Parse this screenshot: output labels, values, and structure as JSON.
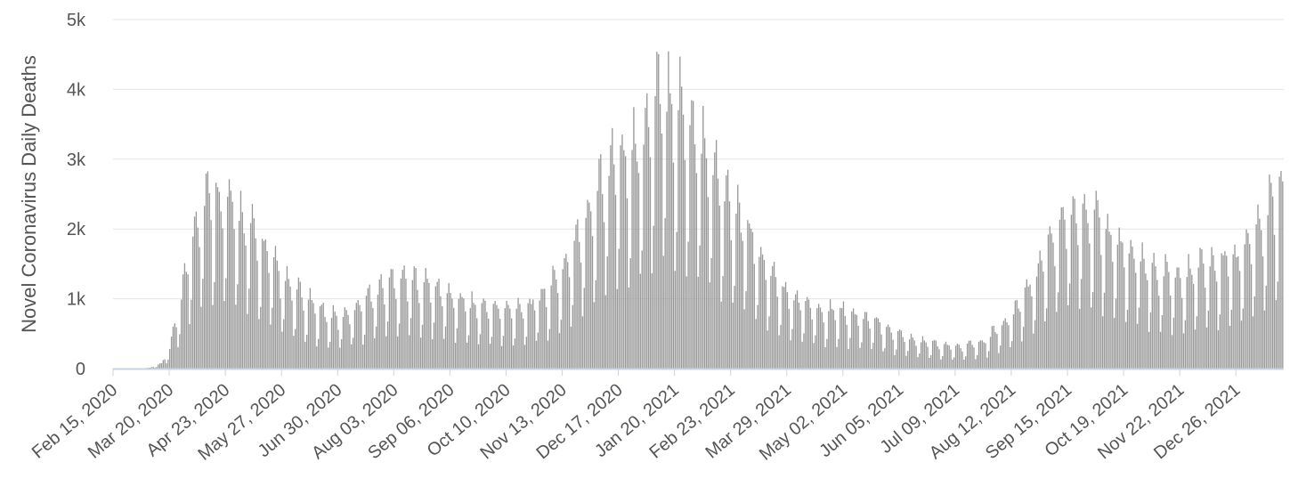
{
  "chart_data": {
    "type": "bar",
    "ylabel": "Novel Coronavirus Daily Deaths",
    "xlabel": "",
    "ylim": [
      0,
      5000
    ],
    "y_ticks": [
      0,
      1000,
      2000,
      3000,
      4000,
      5000
    ],
    "y_tick_labels": [
      "0",
      "1k",
      "2k",
      "3k",
      "4k",
      "5k"
    ],
    "x_start": "2020-02-15",
    "x_end": "2022-01-24",
    "x_ticks": [
      "2020-02-15",
      "2020-03-20",
      "2020-04-23",
      "2020-05-27",
      "2020-06-30",
      "2020-08-03",
      "2020-09-06",
      "2020-10-10",
      "2020-11-13",
      "2020-12-17",
      "2021-01-20",
      "2021-02-23",
      "2021-03-29",
      "2021-05-02",
      "2021-06-05",
      "2021-07-09",
      "2021-08-12",
      "2021-09-15",
      "2021-10-19",
      "2021-11-22",
      "2021-12-26"
    ],
    "x_tick_labels": [
      "Feb 15, 2020",
      "Mar 20, 2020",
      "Apr 23, 2020",
      "May 27, 2020",
      "Jun 30, 2020",
      "Aug 03, 2020",
      "Sep 06, 2020",
      "Oct 10, 2020",
      "Nov 13, 2020",
      "Dec 17, 2020",
      "Jan 20, 2021",
      "Feb 23, 2021",
      "Mar 29, 2021",
      "May 02, 2021",
      "Jun 05, 2021",
      "Jul 09, 2021",
      "Aug 12, 2021",
      "Sep 15, 2021",
      "Oct 19, 2021",
      "Nov 22, 2021",
      "Dec 26, 2021"
    ],
    "grid": true,
    "legend": "none",
    "series": [
      {
        "color": "#999999",
        "trend": [
          {
            "date": "2020-02-15",
            "value": 0
          },
          {
            "date": "2020-02-29",
            "value": 0
          },
          {
            "date": "2020-03-08",
            "value": 10
          },
          {
            "date": "2020-03-15",
            "value": 60
          },
          {
            "date": "2020-03-20",
            "value": 250
          },
          {
            "date": "2020-03-27",
            "value": 900
          },
          {
            "date": "2020-04-03",
            "value": 1700
          },
          {
            "date": "2020-04-10",
            "value": 2100
          },
          {
            "date": "2020-04-17",
            "value": 2150
          },
          {
            "date": "2020-04-23",
            "value": 2050
          },
          {
            "date": "2020-05-01",
            "value": 1900
          },
          {
            "date": "2020-05-10",
            "value": 1650
          },
          {
            "date": "2020-05-20",
            "value": 1350
          },
          {
            "date": "2020-05-27",
            "value": 1100
          },
          {
            "date": "2020-06-10",
            "value": 850
          },
          {
            "date": "2020-06-25",
            "value": 650
          },
          {
            "date": "2020-06-30",
            "value": 620
          },
          {
            "date": "2020-07-10",
            "value": 750
          },
          {
            "date": "2020-07-20",
            "value": 900
          },
          {
            "date": "2020-08-01",
            "value": 1080
          },
          {
            "date": "2020-08-10",
            "value": 1100
          },
          {
            "date": "2020-08-20",
            "value": 1050
          },
          {
            "date": "2020-09-06",
            "value": 900
          },
          {
            "date": "2020-09-20",
            "value": 780
          },
          {
            "date": "2020-10-10",
            "value": 720
          },
          {
            "date": "2020-10-25",
            "value": 780
          },
          {
            "date": "2020-11-05",
            "value": 980
          },
          {
            "date": "2020-11-13",
            "value": 1200
          },
          {
            "date": "2020-11-25",
            "value": 1700
          },
          {
            "date": "2020-12-05",
            "value": 2300
          },
          {
            "date": "2020-12-17",
            "value": 2650
          },
          {
            "date": "2020-12-25",
            "value": 2600
          },
          {
            "date": "2021-01-05",
            "value": 3100
          },
          {
            "date": "2021-01-12",
            "value": 3400
          },
          {
            "date": "2021-01-20",
            "value": 3300
          },
          {
            "date": "2021-01-30",
            "value": 3000
          },
          {
            "date": "2021-02-10",
            "value": 2600
          },
          {
            "date": "2021-02-23",
            "value": 2000
          },
          {
            "date": "2021-03-05",
            "value": 1700
          },
          {
            "date": "2021-03-15",
            "value": 1300
          },
          {
            "date": "2021-03-29",
            "value": 900
          },
          {
            "date": "2021-04-15",
            "value": 750
          },
          {
            "date": "2021-05-02",
            "value": 700
          },
          {
            "date": "2021-05-20",
            "value": 580
          },
          {
            "date": "2021-06-05",
            "value": 420
          },
          {
            "date": "2021-06-20",
            "value": 330
          },
          {
            "date": "2021-07-09",
            "value": 260
          },
          {
            "date": "2021-07-25",
            "value": 320
          },
          {
            "date": "2021-08-12",
            "value": 650
          },
          {
            "date": "2021-08-25",
            "value": 1100
          },
          {
            "date": "2021-09-05",
            "value": 1600
          },
          {
            "date": "2021-09-15",
            "value": 1900
          },
          {
            "date": "2021-09-25",
            "value": 1950
          },
          {
            "date": "2021-10-05",
            "value": 1750
          },
          {
            "date": "2021-10-19",
            "value": 1450
          },
          {
            "date": "2021-11-01",
            "value": 1250
          },
          {
            "date": "2021-11-22",
            "value": 1100
          },
          {
            "date": "2021-12-05",
            "value": 1250
          },
          {
            "date": "2021-12-26",
            "value": 1350
          },
          {
            "date": "2022-01-10",
            "value": 1800
          },
          {
            "date": "2022-01-24",
            "value": 2300
          }
        ]
      }
    ]
  }
}
